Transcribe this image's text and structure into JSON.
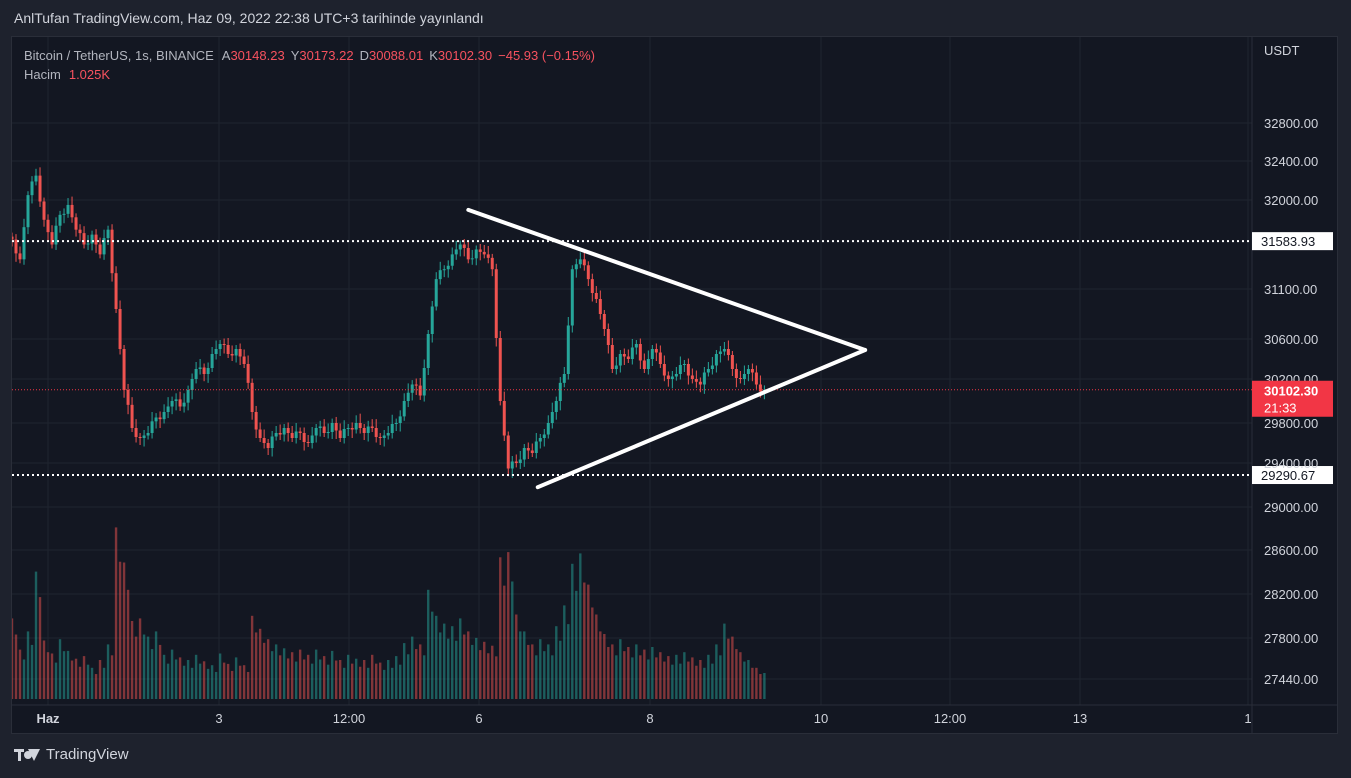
{
  "caption": "AnlTufan TradingView.com, Haz 09, 2022 22:38 UTC+3 tarihinde yayınlandı",
  "footer": {
    "brand": "TradingView",
    "logo_icon": "tradingview-logo-icon"
  },
  "legend": {
    "symbol": "Bitcoin / TetherUS, 1s, BINANCE",
    "open_label": "A",
    "open": "30148.23",
    "high_label": "Y",
    "high": "30173.22",
    "low_label": "D",
    "low": "30088.01",
    "close_label": "K",
    "close": "30102.30",
    "change": "−45.93 (−0.15%)",
    "volume_label": "Hacim",
    "volume": "1.025K"
  },
  "colors": {
    "up": "#26a69a",
    "down": "#ef5350",
    "background": "#131722",
    "grid": "#1f2430",
    "axis_text": "#d1d4dc",
    "drawing": "#ffffff"
  },
  "chart_data": {
    "type": "candlestick",
    "currency": "USDT",
    "timeframe": "1s",
    "y_ticks": [
      27440,
      27800,
      28200,
      28600,
      29000,
      29400,
      29800,
      30200,
      30600,
      31100,
      32000,
      32400,
      32800
    ],
    "y_tick_labels": [
      "27440.00",
      "27800.00",
      "28200.00",
      "28600.00",
      "29000.00",
      "29400.00",
      "29800.00",
      "30200.00",
      "30600.00",
      "31100.00",
      "32000.00",
      "32400.00",
      "32800.00"
    ],
    "x_tick_labels": [
      "Haz",
      "3",
      "12:00",
      "6",
      "8",
      "10",
      "12:00",
      "13",
      "1"
    ],
    "price_levels": [
      {
        "label": "31583.93",
        "value": 31583.93,
        "style": "dotted",
        "color": "#ffffff"
      },
      {
        "label": "29290.67",
        "value": 29290.67,
        "style": "dotted",
        "color": "#ffffff"
      }
    ],
    "last_price": {
      "label": "30102.30",
      "value": 30102.3,
      "countdown": "21:33",
      "color": "#f23645"
    },
    "trendlines": [
      {
        "from": {
          "t": 0.368,
          "price": 31900
        },
        "to": {
          "t": 0.688,
          "price": 30490
        }
      },
      {
        "from": {
          "t": 0.424,
          "price": 29180
        },
        "to": {
          "t": 0.688,
          "price": 30490
        }
      }
    ],
    "series": [
      {
        "name": "",
        "time_fraction_start": 0.0,
        "time_fraction_end": 0.61,
        "close_path": [
          31600,
          31400,
          32050,
          32250,
          31800,
          31550,
          31850,
          31950,
          31700,
          31550,
          31650,
          31450,
          31700,
          30900,
          30100,
          29750,
          29650,
          29700,
          29850,
          29900,
          30000,
          29950,
          30100,
          30300,
          30250,
          30450,
          30550,
          30450,
          30500,
          30350,
          29900,
          29650,
          29550,
          29700,
          29750,
          29650,
          29700,
          29600,
          29750,
          29700,
          29800,
          29650,
          29750,
          29800,
          29700,
          29750,
          29650,
          29700,
          29800,
          30000,
          30150,
          30050,
          30650,
          31200,
          31300,
          31450,
          31550,
          31400,
          31500,
          31450,
          31300,
          30000,
          29350,
          29400,
          29550,
          29500,
          29650,
          29800,
          30000,
          30250,
          31300,
          31400,
          31200,
          31000,
          30700,
          30300,
          30450,
          30400,
          30550,
          30300,
          30500,
          30350,
          30200,
          30250,
          30350,
          30200,
          30150,
          30300,
          30450,
          30500,
          30300,
          30200,
          30300,
          30150,
          30102
        ],
        "volume_path": [
          620,
          380,
          520,
          980,
          450,
          350,
          460,
          370,
          310,
          330,
          240,
          300,
          420,
          1320,
          1050,
          600,
          620,
          480,
          520,
          340,
          380,
          320,
          300,
          340,
          290,
          260,
          350,
          270,
          320,
          260,
          640,
          540,
          460,
          420,
          390,
          360,
          380,
          340,
          380,
          330,
          370,
          300,
          340,
          310,
          300,
          340,
          280,
          300,
          330,
          430,
          480,
          420,
          840,
          640,
          580,
          560,
          620,
          520,
          470,
          440,
          410,
          1090,
          1130,
          650,
          520,
          420,
          460,
          420,
          560,
          720,
          1040,
          1120,
          880,
          650,
          500,
          420,
          460,
          400,
          420,
          380,
          400,
          360,
          330,
          340,
          360,
          320,
          300,
          340,
          420,
          580,
          480,
          360,
          300,
          240,
          200
        ]
      }
    ]
  }
}
